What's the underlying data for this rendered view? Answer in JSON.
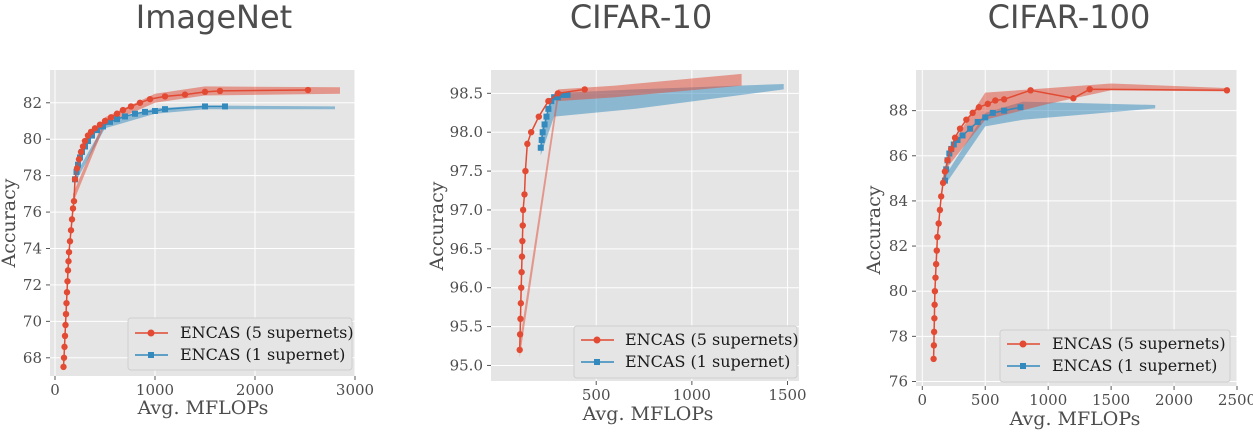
{
  "colors": {
    "series1": "#e24a33",
    "series2": "#348abd",
    "panel_bg": "#e5e5e5",
    "grid": "#ffffff"
  },
  "legend": {
    "item1": "ENCAS (5 supernets)",
    "item2": "ENCAS (1 supernet)"
  },
  "chart_data": [
    {
      "type": "line",
      "title": "ImageNet",
      "xlabel": "Avg. MFLOPs",
      "ylabel": "Accuracy",
      "xlim": [
        -50,
        3000
      ],
      "ylim": [
        67,
        83.8
      ],
      "xticks": [
        0,
        1000,
        2000,
        3000
      ],
      "yticks": [
        68,
        70,
        72,
        74,
        76,
        78,
        80,
        82
      ],
      "grid": true,
      "legend_position": "lower-right",
      "series": [
        {
          "name": "ENCAS (5 supernets)",
          "marker": "circle",
          "points": [
            [
              85,
              67.5
            ],
            [
              90,
              68.0
            ],
            [
              95,
              68.6
            ],
            [
              100,
              69.2
            ],
            [
              105,
              69.8
            ],
            [
              110,
              70.4
            ],
            [
              115,
              71.0
            ],
            [
              120,
              71.6
            ],
            [
              125,
              72.2
            ],
            [
              130,
              72.8
            ],
            [
              135,
              73.3
            ],
            [
              140,
              73.8
            ],
            [
              150,
              74.4
            ],
            [
              160,
              75.0
            ],
            [
              170,
              75.6
            ],
            [
              180,
              76.2
            ],
            [
              190,
              76.6
            ],
            [
              200,
              77.8
            ],
            [
              220,
              78.4
            ],
            [
              240,
              78.9
            ],
            [
              260,
              79.3
            ],
            [
              280,
              79.6
            ],
            [
              300,
              79.9
            ],
            [
              330,
              80.2
            ],
            [
              360,
              80.4
            ],
            [
              400,
              80.6
            ],
            [
              450,
              80.8
            ],
            [
              500,
              81.0
            ],
            [
              560,
              81.2
            ],
            [
              620,
              81.4
            ],
            [
              680,
              81.6
            ],
            [
              760,
              81.8
            ],
            [
              850,
              82.0
            ],
            [
              950,
              82.2
            ],
            [
              1100,
              82.35
            ],
            [
              1300,
              82.45
            ],
            [
              1500,
              82.6
            ],
            [
              1650,
              82.65
            ],
            [
              2530,
              82.7
            ]
          ],
          "band": [
            [
              180,
              76.5,
              77.0
            ],
            [
              500,
              80.8,
              81.2
            ],
            [
              1000,
              82.0,
              82.5
            ],
            [
              1500,
              82.4,
              82.9
            ],
            [
              2850,
              82.5,
              82.85
            ]
          ]
        },
        {
          "name": "ENCAS (1 supernet)",
          "marker": "square",
          "points": [
            [
              200,
              77.8
            ],
            [
              215,
              78.2
            ],
            [
              230,
              78.6
            ],
            [
              250,
              79.0
            ],
            [
              270,
              79.3
            ],
            [
              300,
              79.6
            ],
            [
              330,
              79.9
            ],
            [
              370,
              80.2
            ],
            [
              420,
              80.5
            ],
            [
              480,
              80.7
            ],
            [
              550,
              80.95
            ],
            [
              620,
              81.1
            ],
            [
              700,
              81.25
            ],
            [
              800,
              81.4
            ],
            [
              900,
              81.5
            ],
            [
              1000,
              81.55
            ],
            [
              1100,
              81.65
            ],
            [
              1500,
              81.8
            ],
            [
              1700,
              81.8
            ]
          ],
          "band": [
            [
              200,
              77.6,
              78.0
            ],
            [
              500,
              80.6,
              80.9
            ],
            [
              1000,
              81.4,
              81.7
            ],
            [
              1500,
              81.65,
              81.85
            ],
            [
              2800,
              81.65,
              81.8
            ]
          ]
        }
      ]
    },
    {
      "type": "line",
      "title": "CIFAR-10",
      "xlabel": "Avg. MFLOPs",
      "ylabel": "Accuracy",
      "xlim": [
        -50,
        1560
      ],
      "ylim": [
        94.8,
        98.8
      ],
      "xticks": [
        500,
        1000,
        1500
      ],
      "yticks": [
        95.0,
        95.5,
        96.0,
        96.5,
        97.0,
        97.5,
        98.0,
        98.5
      ],
      "grid": true,
      "legend_position": "lower-right",
      "series": [
        {
          "name": "ENCAS (5 supernets)",
          "marker": "circle",
          "points": [
            [
              100,
              95.2
            ],
            [
              102,
              95.4
            ],
            [
              104,
              95.6
            ],
            [
              106,
              95.8
            ],
            [
              108,
              96.0
            ],
            [
              110,
              96.2
            ],
            [
              112,
              96.4
            ],
            [
              114,
              96.6
            ],
            [
              116,
              96.8
            ],
            [
              118,
              97.0
            ],
            [
              125,
              97.2
            ],
            [
              130,
              97.5
            ],
            [
              140,
              97.85
            ],
            [
              160,
              98.0
            ],
            [
              200,
              98.2
            ],
            [
              250,
              98.4
            ],
            [
              300,
              98.5
            ],
            [
              440,
              98.55
            ]
          ],
          "band": [
            [
              100,
              95.1,
              95.3
            ],
            [
              300,
              98.4,
              98.55
            ],
            [
              600,
              98.45,
              98.6
            ],
            [
              1260,
              98.6,
              98.75
            ]
          ]
        },
        {
          "name": "ENCAS (1 supernet)",
          "marker": "square",
          "points": [
            [
              210,
              97.8
            ],
            [
              215,
              97.9
            ],
            [
              220,
              98.0
            ],
            [
              230,
              98.1
            ],
            [
              240,
              98.2
            ],
            [
              250,
              98.3
            ],
            [
              265,
              98.4
            ],
            [
              280,
              98.45
            ],
            [
              300,
              98.45
            ],
            [
              330,
              98.48
            ],
            [
              350,
              98.48
            ]
          ],
          "band": [
            [
              210,
              97.7,
              98.0
            ],
            [
              280,
              98.2,
              98.5
            ],
            [
              700,
              98.3,
              98.55
            ],
            [
              1480,
              98.55,
              98.62
            ]
          ]
        }
      ]
    },
    {
      "type": "line",
      "title": "CIFAR-100",
      "xlabel": "Avg. MFLOPs",
      "ylabel": "Accuracy",
      "xlim": [
        -50,
        2500
      ],
      "ylim": [
        75.8,
        89.8
      ],
      "xticks": [
        0,
        500,
        1000,
        1500,
        2000,
        2500
      ],
      "yticks": [
        76,
        78,
        80,
        82,
        84,
        86,
        88
      ],
      "grid": true,
      "legend_position": "lower-right",
      "series": [
        {
          "name": "ENCAS (5 supernets)",
          "marker": "circle",
          "points": [
            [
              90,
              77.0
            ],
            [
              92,
              77.6
            ],
            [
              94,
              78.2
            ],
            [
              96,
              78.8
            ],
            [
              98,
              79.4
            ],
            [
              100,
              80.0
            ],
            [
              105,
              80.6
            ],
            [
              110,
              81.2
            ],
            [
              115,
              81.8
            ],
            [
              120,
              82.4
            ],
            [
              130,
              83.0
            ],
            [
              140,
              83.6
            ],
            [
              150,
              84.2
            ],
            [
              165,
              84.8
            ],
            [
              180,
              85.3
            ],
            [
              200,
              85.8
            ],
            [
              230,
              86.3
            ],
            [
              260,
              86.8
            ],
            [
              300,
              87.2
            ],
            [
              350,
              87.6
            ],
            [
              400,
              87.9
            ],
            [
              450,
              88.15
            ],
            [
              520,
              88.3
            ],
            [
              580,
              88.45
            ],
            [
              650,
              88.5
            ],
            [
              860,
              88.9
            ],
            [
              1200,
              88.55
            ],
            [
              1330,
              88.95
            ],
            [
              2420,
              88.9
            ]
          ],
          "band": [
            [
              200,
              85.5,
              86.2
            ],
            [
              500,
              87.6,
              88.8
            ],
            [
              1000,
              88.3,
              89.0
            ],
            [
              1500,
              88.9,
              89.2
            ],
            [
              2430,
              88.85,
              89.0
            ]
          ]
        },
        {
          "name": "ENCAS (1 supernet)",
          "marker": "square",
          "points": [
            [
              180,
              84.9
            ],
            [
              190,
              85.4
            ],
            [
              200,
              85.8
            ],
            [
              215,
              86.1
            ],
            [
              230,
              86.3
            ],
            [
              250,
              86.5
            ],
            [
              280,
              86.7
            ],
            [
              320,
              86.9
            ],
            [
              380,
              87.2
            ],
            [
              440,
              87.5
            ],
            [
              500,
              87.7
            ],
            [
              560,
              87.9
            ],
            [
              650,
              88.0
            ],
            [
              780,
              88.15
            ]
          ],
          "band": [
            [
              180,
              84.7,
              85.1
            ],
            [
              500,
              87.3,
              87.9
            ],
            [
              800,
              87.6,
              88.4
            ],
            [
              1850,
              88.1,
              88.25
            ]
          ]
        }
      ]
    }
  ]
}
